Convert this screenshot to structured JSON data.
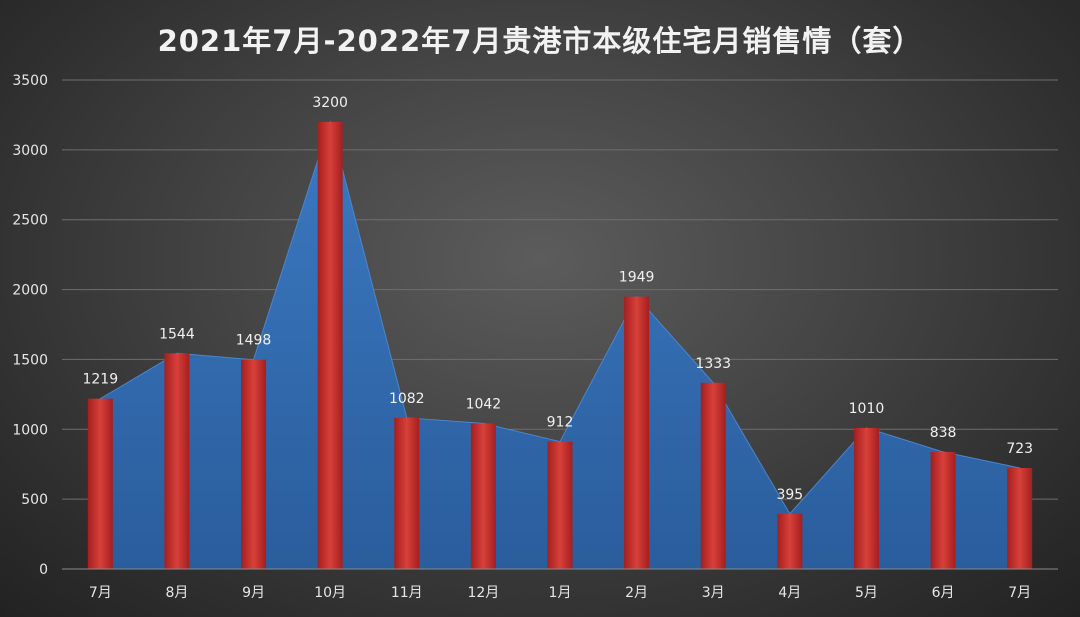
{
  "chart_data": {
    "type": "bar",
    "title": "2021年7月-2022年7月贵港市本级住宅月销售情（套）",
    "categories": [
      "7月",
      "8月",
      "9月",
      "10月",
      "11月",
      "12月",
      "1月",
      "2月",
      "3月",
      "4月",
      "5月",
      "6月",
      "7月"
    ],
    "series": [
      {
        "type": "bar",
        "values": [
          1219,
          1544,
          1498,
          3200,
          1082,
          1042,
          912,
          1949,
          1333,
          395,
          1010,
          838,
          723
        ]
      },
      {
        "type": "area",
        "values": [
          1219,
          1544,
          1498,
          3200,
          1082,
          1042,
          912,
          1949,
          1333,
          395,
          1010,
          838,
          723
        ]
      }
    ],
    "data_labels": true,
    "ylim": [
      0,
      3500
    ],
    "yticks": [
      0,
      500,
      1000,
      1500,
      2000,
      2500,
      3000,
      3500
    ],
    "grid": true,
    "legend": "none",
    "colors": {
      "bar": "#c8302e",
      "area": "#2f67a8",
      "grid": "#6e6e6e",
      "text": "#e6e6e6"
    }
  }
}
